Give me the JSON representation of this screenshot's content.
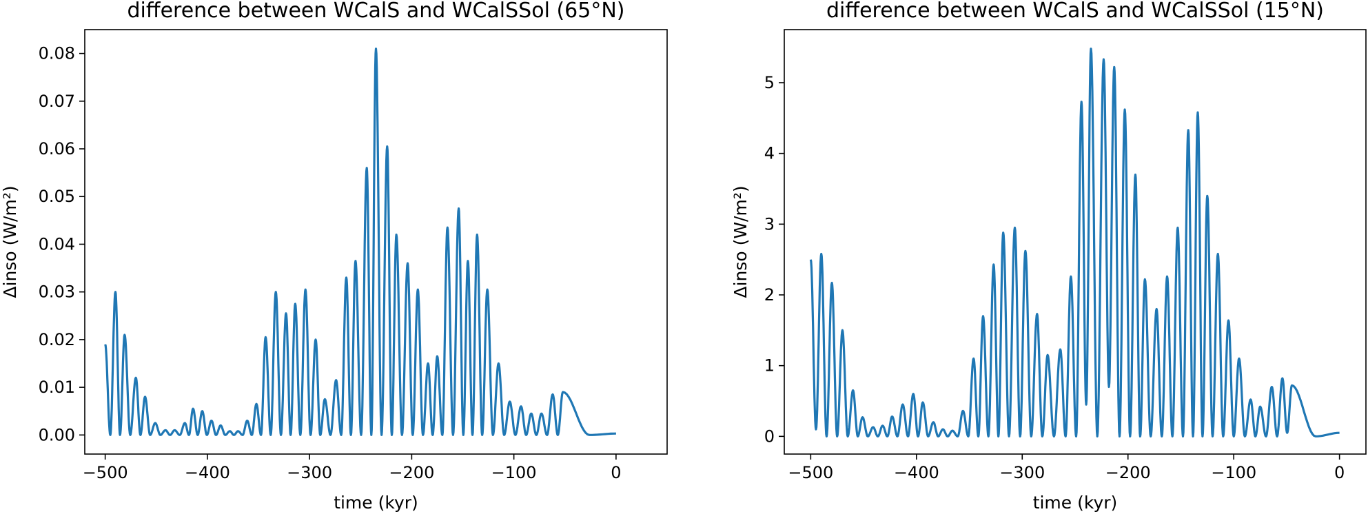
{
  "chart_data": [
    {
      "type": "line",
      "title": "difference between WCalS and WCalSSol (65°N)",
      "xlabel": "time (kyr)",
      "ylabel": "Δinso (W/m²)",
      "xlim": [
        -520,
        50
      ],
      "ylim": [
        -0.004,
        0.085
      ],
      "xticks": [
        -500,
        -400,
        -300,
        -200,
        -100,
        0
      ],
      "xtick_labels": [
        "−500",
        "−400",
        "−300",
        "−200",
        "−100",
        "0"
      ],
      "yticks": [
        0.0,
        0.01,
        0.02,
        0.03,
        0.04,
        0.05,
        0.06,
        0.07,
        0.08
      ],
      "ytick_labels": [
        "0.00",
        "0.01",
        "0.02",
        "0.03",
        "0.04",
        "0.05",
        "0.06",
        "0.07",
        "0.08"
      ],
      "series": [
        {
          "name": "difference 65°N",
          "color": "#1f77b4",
          "peaks": [
            [
              -500,
              0.019
            ],
            [
              -490,
              0.03
            ],
            [
              -481,
              0.021
            ],
            [
              -470,
              0.012
            ],
            [
              -461,
              0.008
            ],
            [
              -451,
              0.0025
            ],
            [
              -441,
              0.001
            ],
            [
              -432,
              0.001
            ],
            [
              -422,
              0.0025
            ],
            [
              -414,
              0.0055
            ],
            [
              -405,
              0.005
            ],
            [
              -396,
              0.003
            ],
            [
              -387,
              0.002
            ],
            [
              -378,
              0.0008
            ],
            [
              -370,
              0.0008
            ],
            [
              -361,
              0.003
            ],
            [
              -352,
              0.0065
            ],
            [
              -343,
              0.0205
            ],
            [
              -333,
              0.03
            ],
            [
              -323,
              0.0255
            ],
            [
              -314,
              0.0275
            ],
            [
              -304,
              0.0305
            ],
            [
              -294,
              0.02
            ],
            [
              -285,
              0.0075
            ],
            [
              -274,
              0.0115
            ],
            [
              -264,
              0.033
            ],
            [
              -255,
              0.0365
            ],
            [
              -244,
              0.056
            ],
            [
              -235,
              0.081
            ],
            [
              -224,
              0.0605
            ],
            [
              -215,
              0.042
            ],
            [
              -204,
              0.036
            ],
            [
              -194,
              0.0305
            ],
            [
              -184,
              0.015
            ],
            [
              -175,
              0.0165
            ],
            [
              -165,
              0.0435
            ],
            [
              -154,
              0.0475
            ],
            [
              -145,
              0.0365
            ],
            [
              -136,
              0.042
            ],
            [
              -126,
              0.0305
            ],
            [
              -115,
              0.015
            ],
            [
              -104,
              0.007
            ],
            [
              -93,
              0.006
            ],
            [
              -83,
              0.0045
            ],
            [
              -73,
              0.0045
            ],
            [
              -62,
              0.0085
            ],
            [
              -52,
              0.009
            ]
          ],
          "end": [
            0,
            0.0003
          ]
        }
      ]
    },
    {
      "type": "line",
      "title": "difference between WCalS and WCalSSol (15°N)",
      "xlabel": "time (kyr)",
      "ylabel": "Δinso (W/m²)",
      "xlim": [
        -525,
        25
      ],
      "ylim": [
        -0.25,
        5.75
      ],
      "xticks": [
        -500,
        -400,
        -300,
        -200,
        -100,
        0
      ],
      "xtick_labels": [
        "−500",
        "−400",
        "−300",
        "−200",
        "−100",
        "0"
      ],
      "yticks": [
        0,
        1,
        2,
        3,
        4,
        5
      ],
      "ytick_labels": [
        "0",
        "1",
        "2",
        "3",
        "4",
        "5"
      ],
      "series": [
        {
          "name": "difference 15°N",
          "color": "#1f77b4",
          "peaks": [
            [
              -500,
              2.5
            ],
            [
              -490,
              2.58
            ],
            [
              -480,
              2.17
            ],
            [
              -470,
              1.5
            ],
            [
              -460,
              0.65
            ],
            [
              -451,
              0.27
            ],
            [
              -441,
              0.13
            ],
            [
              -432,
              0.15
            ],
            [
              -423,
              0.28
            ],
            [
              -413,
              0.45
            ],
            [
              -403,
              0.6
            ],
            [
              -394,
              0.48
            ],
            [
              -384,
              0.2
            ],
            [
              -375,
              0.1
            ],
            [
              -366,
              0.08
            ],
            [
              -356,
              0.36
            ],
            [
              -346,
              1.1
            ],
            [
              -337,
              1.7
            ],
            [
              -327,
              2.43
            ],
            [
              -318,
              2.88
            ],
            [
              -307,
              2.95
            ],
            [
              -297,
              2.62
            ],
            [
              -286,
              1.73
            ],
            [
              -276,
              1.15
            ],
            [
              -264,
              1.23
            ],
            [
              -254,
              2.26
            ],
            [
              -244,
              4.73
            ],
            [
              -235,
              5.48
            ],
            [
              -223,
              5.33
            ],
            [
              -213,
              5.22
            ],
            [
              -203,
              4.62
            ],
            [
              -193,
              3.7
            ],
            [
              -184,
              2.22
            ],
            [
              -173,
              1.8
            ],
            [
              -163,
              2.26
            ],
            [
              -153,
              2.95
            ],
            [
              -143,
              4.33
            ],
            [
              -134,
              4.58
            ],
            [
              -125,
              3.4
            ],
            [
              -115,
              2.58
            ],
            [
              -105,
              1.64
            ],
            [
              -95,
              1.1
            ],
            [
              -84,
              0.52
            ],
            [
              -75,
              0.42
            ],
            [
              -64,
              0.7
            ],
            [
              -54,
              0.82
            ],
            [
              -45,
              0.72
            ]
          ],
          "troughs": [
            0.1,
            0.0,
            0.0,
            0.0,
            0.0,
            0.0,
            0.0,
            0.0,
            0.0,
            0.0,
            0.0,
            0.0,
            0.0,
            0.0,
            0.0,
            0.0,
            0.0,
            0.0,
            0.0,
            0.0,
            0.0,
            0.0,
            0.0,
            0.0,
            0.0,
            0.0,
            0.45,
            0.0,
            0.7,
            0.0,
            0.0,
            0.0,
            0.0,
            0.0,
            0.0,
            0.0,
            0.0,
            0.0,
            0.0,
            0.0,
            0.0,
            0.0,
            0.0,
            0.0,
            0.0,
            0.05,
            0.0
          ],
          "end": [
            0,
            0.05
          ]
        }
      ]
    }
  ]
}
